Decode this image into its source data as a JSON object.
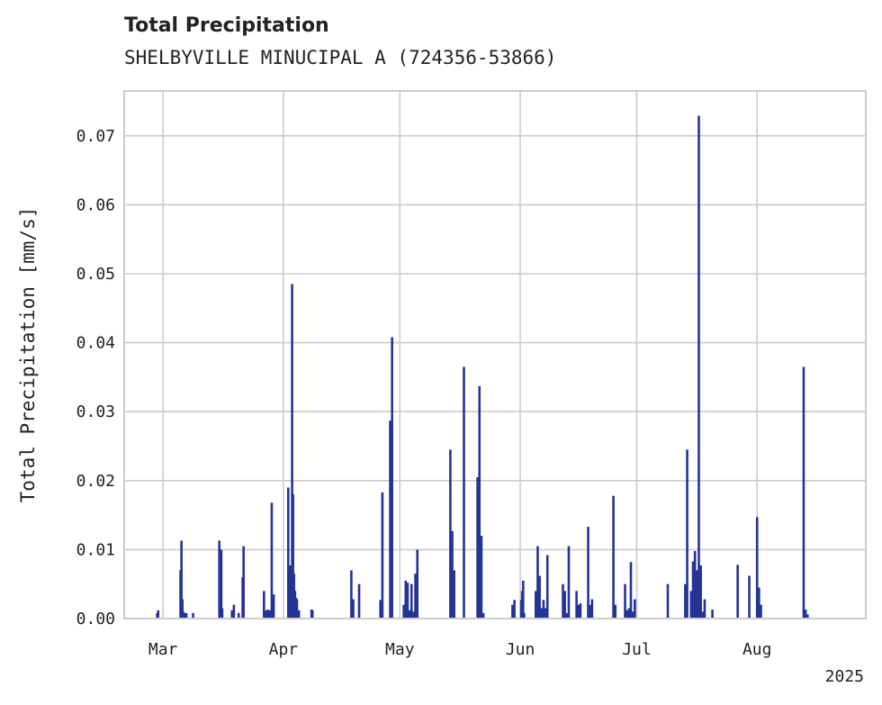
{
  "chart_data": {
    "type": "bar",
    "title": "Total Precipitation",
    "subtitle": "SHELBYVILLE MINUCIPAL A (724356-53866)",
    "xlabel": "",
    "ylabel": "Total Precipitation [mm/s]",
    "ylim": [
      0,
      0.0765
    ],
    "xlim": [
      "2025-02-19",
      "2025-08-29"
    ],
    "x_ticks": [
      {
        "date": "2025-03-01",
        "label": "Mar"
      },
      {
        "date": "2025-04-01",
        "label": "Apr"
      },
      {
        "date": "2025-05-01",
        "label": "May"
      },
      {
        "date": "2025-06-01",
        "label": "Jun"
      },
      {
        "date": "2025-07-01",
        "label": "Jul"
      },
      {
        "date": "2025-08-01",
        "label": "Aug"
      }
    ],
    "x_offset_label": "2025",
    "y_ticks": [
      0.0,
      0.01,
      0.02,
      0.03,
      0.04,
      0.05,
      0.06,
      0.07
    ],
    "y_tick_labels": [
      "0.00",
      "0.01",
      "0.02",
      "0.03",
      "0.04",
      "0.05",
      "0.06",
      "0.07"
    ],
    "grid": true,
    "color": "#253494",
    "series": [
      {
        "x": [
          "2025-02-27 12:00",
          "2025-02-27 18:00",
          "2025-03-05 12:00",
          "2025-03-05 18:00",
          "2025-03-06 00:00",
          "2025-03-06 06:00",
          "2025-03-06 12:00",
          "2025-03-07 00:00",
          "2025-03-08 18:00",
          "2025-03-15 12:00",
          "2025-03-15 18:00",
          "2025-03-16 00:00",
          "2025-03-16 06:00",
          "2025-03-18 18:00",
          "2025-03-19 06:00",
          "2025-03-20 12:00",
          "2025-03-21 12:00",
          "2025-03-21 18:00",
          "2025-03-27 00:00",
          "2025-03-27 12:00",
          "2025-03-28 00:00",
          "2025-03-28 12:00",
          "2025-03-29 00:00",
          "2025-03-29 12:00",
          "2025-04-02 06:00",
          "2025-04-02 12:00",
          "2025-04-02 18:00",
          "2025-04-03 00:00",
          "2025-04-03 06:00",
          "2025-04-03 12:00",
          "2025-04-03 18:00",
          "2025-04-04 00:00",
          "2025-04-04 06:00",
          "2025-04-04 12:00",
          "2025-04-05 00:00",
          "2025-04-08 06:00",
          "2025-04-08 12:00",
          "2025-04-18 12:00",
          "2025-04-19 00:00",
          "2025-04-20 12:00",
          "2025-04-26 00:00",
          "2025-04-26 12:00",
          "2025-04-28 12:00",
          "2025-04-29 00:00",
          "2025-05-02 00:00",
          "2025-05-02 12:00",
          "2025-05-03 00:00",
          "2025-05-03 12:00",
          "2025-05-04 00:00",
          "2025-05-04 12:00",
          "2025-05-05 00:00",
          "2025-05-05 12:00",
          "2025-05-14 00:00",
          "2025-05-14 12:00",
          "2025-05-15 00:00",
          "2025-05-17 12:00",
          "2025-05-21 00:00",
          "2025-05-21 12:00",
          "2025-05-22 00:00",
          "2025-05-22 12:00",
          "2025-05-30 00:00",
          "2025-05-30 12:00",
          "2025-06-01 06:00",
          "2025-06-01 12:00",
          "2025-06-01 18:00",
          "2025-06-02 00:00",
          "2025-06-05 00:00",
          "2025-06-05 12:00",
          "2025-06-06 00:00",
          "2025-06-06 12:00",
          "2025-06-07 00:00",
          "2025-06-07 12:00",
          "2025-06-08 00:00",
          "2025-06-12 00:00",
          "2025-06-12 12:00",
          "2025-06-13 00:00",
          "2025-06-13 12:00",
          "2025-06-15 12:00",
          "2025-06-16 00:00",
          "2025-06-16 12:00",
          "2025-06-18 12:00",
          "2025-06-19 00:00",
          "2025-06-19 12:00",
          "2025-06-25 00:00",
          "2025-06-25 12:00",
          "2025-06-28 00:00",
          "2025-06-28 12:00",
          "2025-06-29 00:00",
          "2025-06-29 12:00",
          "2025-06-30 00:00",
          "2025-06-30 12:00",
          "2025-07-09 00:00",
          "2025-07-13 12:00",
          "2025-07-14 00:00",
          "2025-07-15 00:00",
          "2025-07-15 12:00",
          "2025-07-16 00:00",
          "2025-07-16 12:00",
          "2025-07-17 00:00",
          "2025-07-17 12:00",
          "2025-07-18 00:00",
          "2025-07-18 12:00",
          "2025-07-20 12:00",
          "2025-07-27 00:00",
          "2025-07-30 00:00",
          "2025-08-01 00:00",
          "2025-08-01 12:00",
          "2025-08-02 00:00",
          "2025-08-13 00:00",
          "2025-08-13 12:00",
          "2025-08-14 00:00"
        ],
        "values": [
          0.0008,
          0.0012,
          0.007,
          0.0113,
          0.0028,
          0.001,
          0.0008,
          0.0008,
          0.0008,
          0.0113,
          0.003,
          0.01,
          0.0015,
          0.0012,
          0.002,
          0.0008,
          0.006,
          0.0105,
          0.004,
          0.0012,
          0.0013,
          0.0012,
          0.0168,
          0.0035,
          0.019,
          0.002,
          0.0077,
          0.007,
          0.0485,
          0.018,
          0.0065,
          0.004,
          0.003,
          0.0028,
          0.0012,
          0.0013,
          0.0012,
          0.007,
          0.0028,
          0.005,
          0.0027,
          0.0183,
          0.0287,
          0.0408,
          0.002,
          0.0055,
          0.0052,
          0.0012,
          0.005,
          0.001,
          0.0065,
          0.01,
          0.0245,
          0.0127,
          0.007,
          0.0365,
          0.0205,
          0.0337,
          0.012,
          0.0008,
          0.002,
          0.0027,
          0.0027,
          0.004,
          0.0055,
          0.0008,
          0.004,
          0.0105,
          0.0062,
          0.0015,
          0.0027,
          0.0015,
          0.0092,
          0.005,
          0.004,
          0.0008,
          0.0105,
          0.004,
          0.002,
          0.0022,
          0.0133,
          0.002,
          0.0028,
          0.0178,
          0.002,
          0.005,
          0.0012,
          0.0015,
          0.0082,
          0.001,
          0.0028,
          0.005,
          0.005,
          0.0245,
          0.004,
          0.0083,
          0.0098,
          0.007,
          0.0729,
          0.0077,
          0.001,
          0.0028,
          0.0013,
          0.0078,
          0.0062,
          0.0147,
          0.0045,
          0.002,
          0.0365,
          0.0013,
          0.0006
        ]
      }
    ]
  }
}
